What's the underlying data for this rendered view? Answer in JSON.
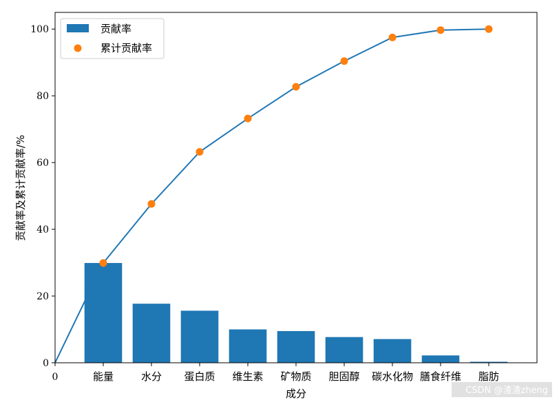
{
  "chart_data": {
    "type": "bar",
    "categories": [
      "能量",
      "水分",
      "蛋白质",
      "维生素",
      "矿物质",
      "胆固醇",
      "碳水化物",
      "膳食纤维",
      "脂肪"
    ],
    "series": [
      {
        "name": "贡献率",
        "type": "bar",
        "color": "#1f77b4",
        "values": [
          29.9,
          17.7,
          15.6,
          10.0,
          9.5,
          7.7,
          7.1,
          2.2,
          0.3
        ]
      },
      {
        "name": "累计贡献率",
        "type": "scatter",
        "color": "#ff7f0e",
        "values": [
          29.9,
          47.6,
          63.2,
          73.2,
          82.7,
          90.4,
          97.5,
          99.7,
          100.0
        ]
      }
    ],
    "line": {
      "color": "#1f77b4",
      "x": [
        0,
        1,
        2,
        3,
        4,
        5,
        6,
        7,
        8,
        9
      ],
      "y": [
        0,
        29.9,
        47.6,
        63.2,
        73.2,
        82.7,
        90.4,
        97.5,
        99.7,
        100.0
      ]
    },
    "x_tick_zero_label": "0",
    "xlim": [
      0,
      10
    ],
    "ylim": [
      0,
      105
    ],
    "y_ticks": [
      0,
      20,
      40,
      60,
      80,
      100
    ],
    "xlabel": "成分",
    "ylabel": "贡献率及累计贡献率/%",
    "legend_position": "top-left",
    "grid": false
  },
  "watermark": "CSDN @渣渣zheng"
}
